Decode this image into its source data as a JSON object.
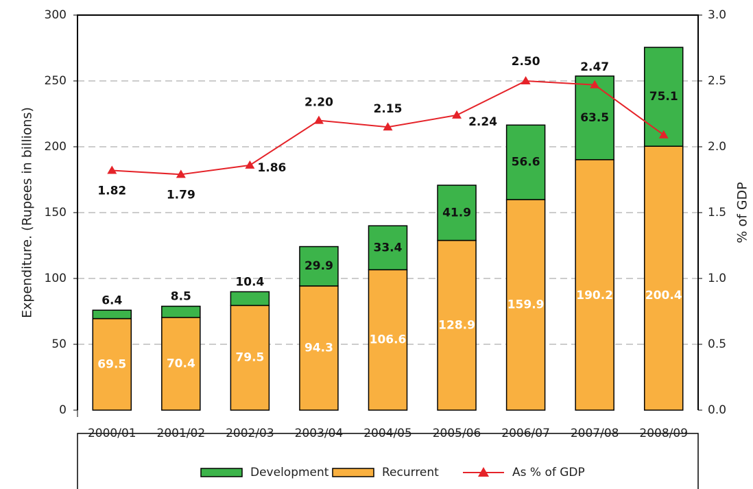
{
  "chart_data": {
    "type": "bar",
    "y_label": "Expenditure. (Rupees in billions)",
    "y2_label": "% of GDP",
    "categories": [
      "2000/01",
      "2001/02",
      "2002/03",
      "2003/04",
      "2004/05",
      "2005/06",
      "2006/07",
      "2007/08",
      "2008/09"
    ],
    "series": [
      {
        "name": "Recurrent",
        "color": "#f9b040",
        "values": [
          69.5,
          70.4,
          79.5,
          94.3,
          106.6,
          128.9,
          159.9,
          190.2,
          200.4
        ]
      },
      {
        "name": "Development",
        "color": "#3cb44a",
        "values": [
          6.4,
          8.5,
          10.4,
          29.9,
          33.4,
          41.9,
          56.6,
          63.5,
          75.1
        ]
      },
      {
        "name": "As % of GDP",
        "color": "#e52329",
        "type": "line",
        "axis": "y2",
        "values": [
          1.82,
          1.79,
          1.86,
          2.2,
          2.15,
          2.24,
          2.5,
          2.47,
          2.09
        ],
        "value_labels": [
          "1.82",
          "1.79",
          "1.86",
          "2.20",
          "2.15",
          "2.24",
          "2.50",
          "2.47",
          null
        ]
      }
    ],
    "ylim": [
      0,
      300
    ],
    "yticks": [
      0,
      50,
      100,
      150,
      200,
      250,
      300
    ],
    "y2lim": [
      0,
      3
    ],
    "y2ticks": [
      {
        "value": 0,
        "label": "0.0"
      },
      0.5,
      {
        "value": 1,
        "label": "1.0"
      },
      1.5,
      {
        "value": 2,
        "label": "2.0"
      },
      2.5,
      {
        "value": 3,
        "label": "3.0"
      }
    ],
    "grid": true,
    "legend": "bottom"
  }
}
